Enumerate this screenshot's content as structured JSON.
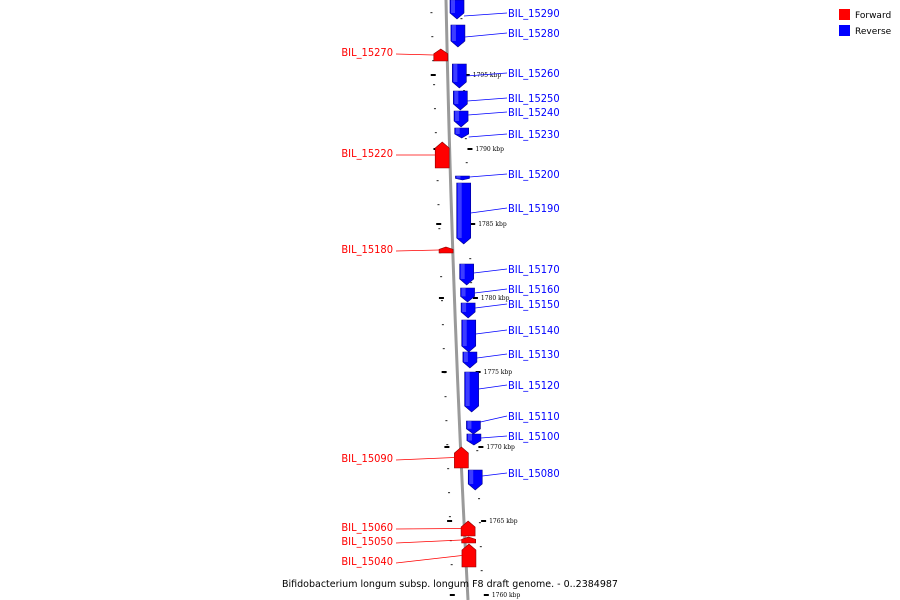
{
  "legend": {
    "forward_label": "Forward",
    "reverse_label": "Reverse",
    "forward_color": "#ff0000",
    "reverse_color": "#0000ff"
  },
  "caption": "Bifidobacterium longum subsp. longum F8 draft genome. - 0..2384987",
  "scale_ticks": [
    "1795 kbp",
    "1790 kbp",
    "1785 kbp",
    "1780 kbp",
    "1775 kbp",
    "1770 kbp",
    "1765 kbp",
    "1760 kbp"
  ],
  "forward_genes": [
    "BIL_15270",
    "BIL_15220",
    "BIL_15180",
    "BIL_15090",
    "BIL_15060",
    "BIL_15050",
    "BIL_15040"
  ],
  "reverse_genes": [
    "BIL_15290",
    "BIL_15280",
    "BIL_15260",
    "BIL_15250",
    "BIL_15240",
    "BIL_15230",
    "BIL_15200",
    "BIL_15190",
    "BIL_15170",
    "BIL_15160",
    "BIL_15150",
    "BIL_15140",
    "BIL_15130",
    "BIL_15120",
    "BIL_15110",
    "BIL_15100",
    "BIL_15080"
  ]
}
